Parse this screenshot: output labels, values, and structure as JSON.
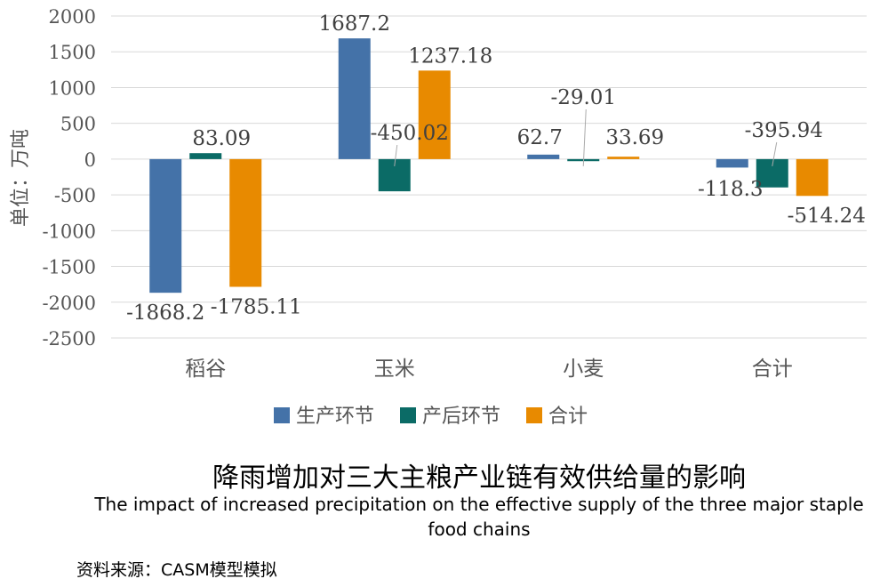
{
  "chart_data": {
    "type": "bar",
    "ylabel": "单位：万吨",
    "ylim": [
      -2500,
      2000
    ],
    "yticks": [
      2000,
      1500,
      1000,
      500,
      0,
      -500,
      -1000,
      -1500,
      -2000,
      -2500
    ],
    "grid": true,
    "legend_position": "bottom",
    "categories": [
      "稻谷",
      "玉米",
      "小麦",
      "合计"
    ],
    "series": [
      {
        "name": "生产环节",
        "color": "#4472a8",
        "values": [
          -1868.2,
          1687.2,
          62.7,
          -118.3
        ],
        "labels": [
          "-1868.2",
          "1687.2",
          "62.7",
          "-118.3"
        ]
      },
      {
        "name": "产后环节",
        "color": "#0b6b66",
        "values": [
          83.09,
          -450.02,
          -29.01,
          -395.94
        ],
        "labels": [
          "83.09",
          "-450.02",
          "-29.01",
          "-395.94"
        ]
      },
      {
        "name": "合计",
        "color": "#e88a00",
        "values": [
          -1785.11,
          1237.18,
          33.69,
          -514.24
        ],
        "labels": [
          "-1785.11",
          "1237.18",
          "33.69",
          "-514.24"
        ]
      }
    ]
  },
  "title": "降雨增加对三大主粮产业链有效供给量的影响",
  "subtitle": "The impact of increased precipitation on the effective supply of the three major staple food chains",
  "source": "资料来源：CASM模型模拟"
}
